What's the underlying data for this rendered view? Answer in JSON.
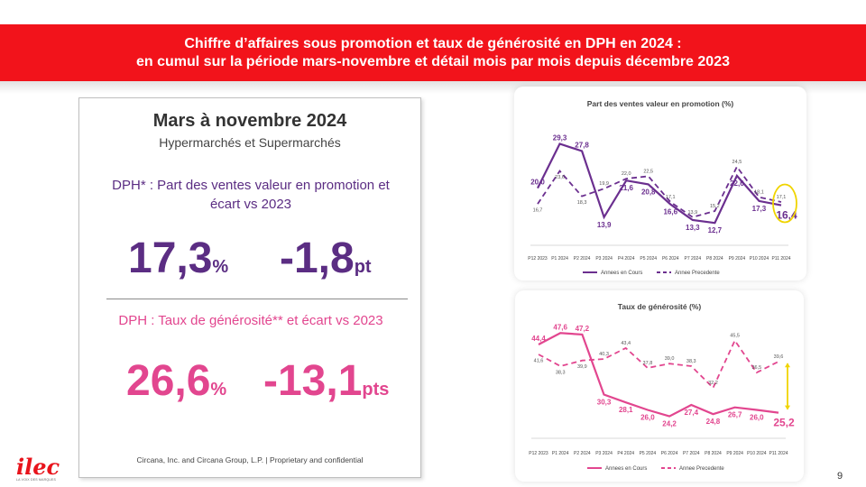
{
  "banner": {
    "line1": "Chiffre d’affaires sous promotion et taux de générosité en DPH en 2024 :",
    "line2": "en cumul sur la période mars-novembre et détail mois par mois depuis décembre 2023"
  },
  "left_panel": {
    "title": "Mars à novembre 2024",
    "subtitle": "Hypermarchés et Supermarchés",
    "promo_label": "DPH* : Part des ventes valeur en promotion et écart vs 2023",
    "promo_value": "17,3",
    "promo_value_unit": "%",
    "promo_delta": "-1,8",
    "promo_delta_unit": "pt",
    "gen_label": "DPH : Taux de générosité** et écart vs 2023",
    "gen_value": "26,6",
    "gen_value_unit": "%",
    "gen_delta": "-13,1",
    "gen_delta_unit": "pts",
    "footer": "Circana, Inc. and Circana Group, L.P. | Proprietary and confidential"
  },
  "page_number": "9",
  "logo": {
    "text": "ilec",
    "tagline": "LA VOIX DES MARQUES"
  },
  "chart_data": [
    {
      "type": "line",
      "title": "Part des ventes valeur en promotion (%)",
      "categories": [
        "P12 2023",
        "P1 2024",
        "P2 2024",
        "P3 2024",
        "P4 2024",
        "P5 2024",
        "P6 2024",
        "P7 2024",
        "P8 2024",
        "P9 2024",
        "P10 2024",
        "P11 2024"
      ],
      "series": [
        {
          "name": "Annees en Cours",
          "values": [
            20.0,
            29.3,
            27.8,
            13.9,
            21.6,
            20.8,
            16.6,
            13.3,
            12.7,
            22.6,
            17.3,
            16.4
          ],
          "labels": [
            "20,0",
            "29,3",
            "27,8",
            "13,9",
            "21,6",
            "20,8",
            "16,6",
            "13,3",
            "12,7",
            "22,6",
            "17,3",
            "16,4"
          ],
          "color": "#6b2f8f",
          "style": "solid"
        },
        {
          "name": "Annee Precedente",
          "values": [
            16.7,
            23.6,
            18.3,
            19.9,
            22.0,
            22.5,
            17.1,
            13.9,
            15.2,
            24.5,
            18.1,
            17.1
          ],
          "labels": [
            "16,7",
            "23,6",
            "18,3",
            "19,9",
            "22,0",
            "22,5",
            "17,1",
            "13,9",
            "15,2",
            "24,5",
            "18,1",
            "17,1"
          ],
          "color": "#6b2f8f",
          "style": "dashed"
        }
      ],
      "ylim": [
        8,
        33
      ],
      "highlight": "P11 2024",
      "highlight_color": "#f0d400",
      "legend": "bottom"
    },
    {
      "type": "line",
      "title": "Taux de générosité (%)",
      "categories": [
        "P12 2023",
        "P1 2024",
        "P2 2024",
        "P3 2024",
        "P4 2024",
        "P5 2024",
        "P6 2024",
        "P7 2024",
        "P8 2024",
        "P9 2024",
        "P10 2024",
        "P11 2024"
      ],
      "series": [
        {
          "name": "Annees en Cours",
          "values": [
            44.4,
            47.6,
            47.2,
            30.3,
            28.1,
            26.0,
            24.2,
            27.4,
            24.8,
            26.7,
            26.0,
            25.2
          ],
          "labels": [
            "44,4",
            "47,6",
            "47,2",
            "30,3",
            "28,1",
            "26,0",
            "24,2",
            "27,4",
            "24,8",
            "26,7",
            "26,0",
            "25,2"
          ],
          "color": "#e2468f",
          "style": "solid"
        },
        {
          "name": "Annee Precedente",
          "values": [
            41.6,
            38.3,
            39.9,
            40.3,
            43.4,
            37.8,
            39.0,
            38.3,
            32.2,
            45.5,
            36.5,
            39.6
          ],
          "labels": [
            "41,6",
            "38,3",
            "39,9",
            "40,3",
            "43,4",
            "37,8",
            "39,0",
            "38,3",
            "32,2",
            "45,5",
            "36,5",
            "39,6"
          ],
          "color": "#e2468f",
          "style": "dashed"
        }
      ],
      "ylim": [
        18,
        52
      ],
      "highlight": "P11 2024",
      "highlight_color": "#f0d400",
      "legend": "bottom"
    }
  ]
}
